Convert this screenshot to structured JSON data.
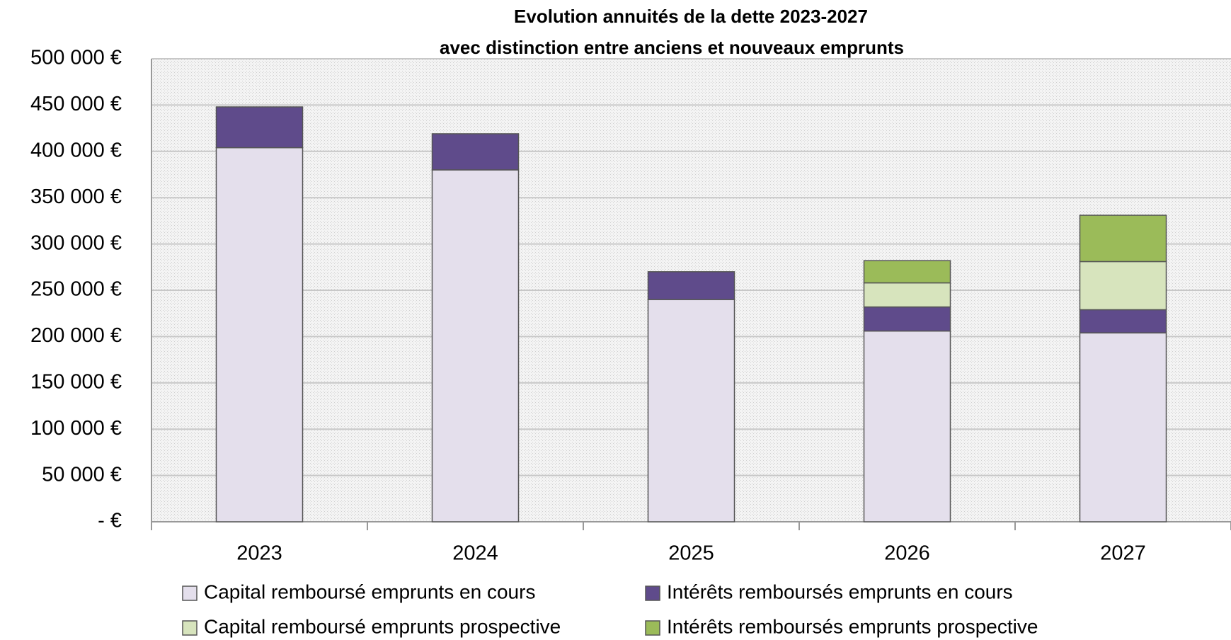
{
  "chart_data": {
    "type": "stacked_bar",
    "title": [
      "Evolution annuités de la dette 2023-2027",
      "avec distinction entre anciens et nouveaux emprunts"
    ],
    "categories": [
      "2023",
      "2024",
      "2025",
      "2026",
      "2027"
    ],
    "series": [
      {
        "name": "Capital remboursé emprunts en cours",
        "color": "#e4dfec",
        "values": [
          404000,
          380000,
          240000,
          206000,
          204000
        ]
      },
      {
        "name": "Intérêts remboursés emprunts en cours",
        "color": "#5f4b8b",
        "values": [
          44000,
          39000,
          30000,
          26000,
          25000
        ]
      },
      {
        "name": "Capital remboursé emprunts prospective",
        "color": "#d7e4bd",
        "values": [
          0,
          0,
          0,
          26000,
          52000
        ]
      },
      {
        "name": "Intérêts remboursés emprunts  prospective",
        "color": "#9bbb59",
        "values": [
          0,
          0,
          0,
          24000,
          50000
        ]
      }
    ],
    "ylim": [
      0,
      500000
    ],
    "yticks": [
      {
        "value": 0,
        "label": "-   €"
      },
      {
        "value": 50000,
        "label": "50 000 €"
      },
      {
        "value": 100000,
        "label": "100 000 €"
      },
      {
        "value": 150000,
        "label": "150 000 €"
      },
      {
        "value": 200000,
        "label": "200 000 €"
      },
      {
        "value": 250000,
        "label": "250 000 €"
      },
      {
        "value": 300000,
        "label": "300 000 €"
      },
      {
        "value": 350000,
        "label": "350 000 €"
      },
      {
        "value": 400000,
        "label": "400 000 €"
      },
      {
        "value": 450000,
        "label": "450 000 €"
      },
      {
        "value": 500000,
        "label": "500 000 €"
      }
    ],
    "grid": true
  }
}
